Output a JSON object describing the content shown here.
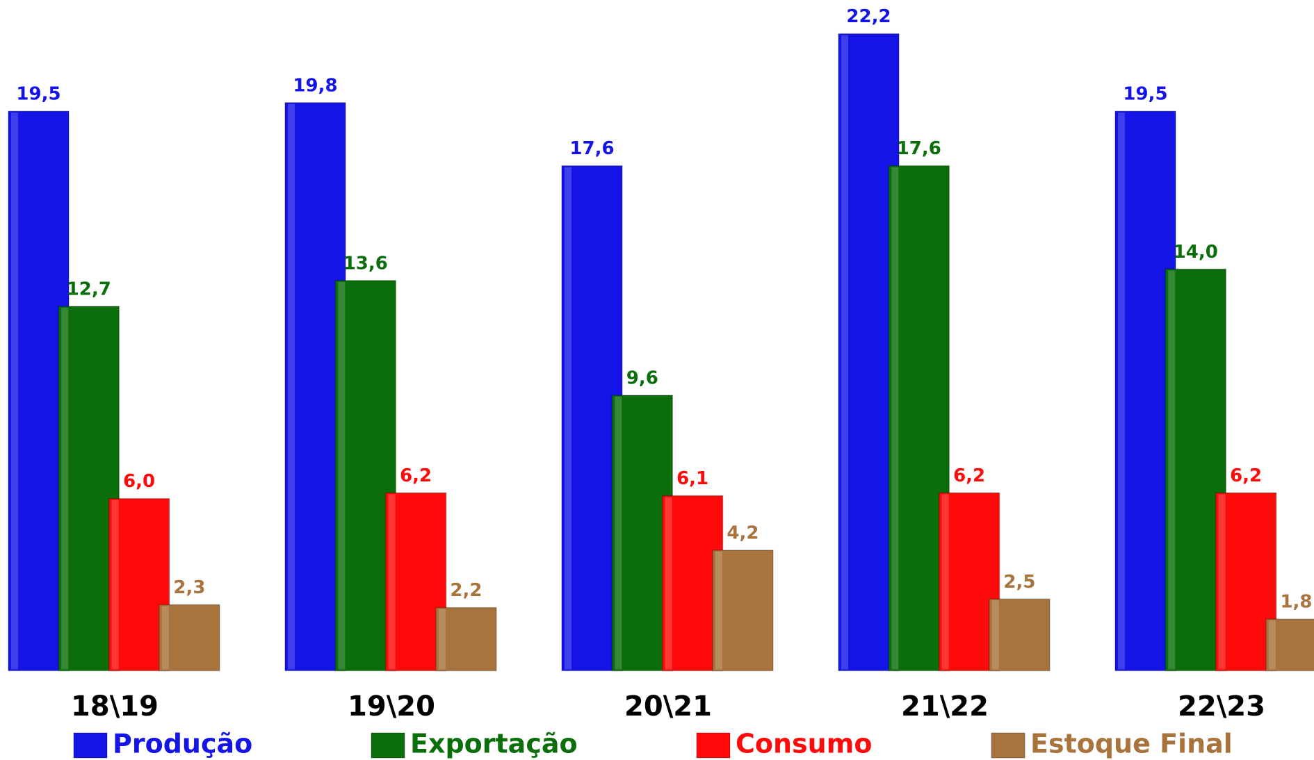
{
  "chart_data": {
    "type": "bar",
    "categories": [
      "18\\19",
      "19\\20",
      "20\\21",
      "21\\22",
      "22\\23"
    ],
    "series": [
      {
        "name": "Produção",
        "color": "#1414e6",
        "values": [
          19.5,
          19.8,
          17.6,
          22.2,
          19.5
        ],
        "value_labels": [
          "19,5",
          "19,8",
          "17,6",
          "22,2",
          "19,5"
        ]
      },
      {
        "name": "Exportação",
        "color": "#0a6e0a",
        "values": [
          12.7,
          13.6,
          9.6,
          17.6,
          14.0
        ],
        "value_labels": [
          "12,7",
          "13,6",
          "9,6",
          "17,6",
          "14,0"
        ]
      },
      {
        "name": "Consumo",
        "color": "#ff0a0a",
        "values": [
          6.0,
          6.2,
          6.1,
          6.2,
          6.2
        ],
        "value_labels": [
          "6,0",
          "6,2",
          "6,1",
          "6,2",
          "6,2"
        ]
      },
      {
        "name": "Estoque Final",
        "color": "#a8733c",
        "values": [
          2.3,
          2.2,
          4.2,
          2.5,
          1.8
        ],
        "value_labels": [
          "2,3",
          "2,2",
          "4,2",
          "2,5",
          "1,8"
        ]
      }
    ]
  }
}
